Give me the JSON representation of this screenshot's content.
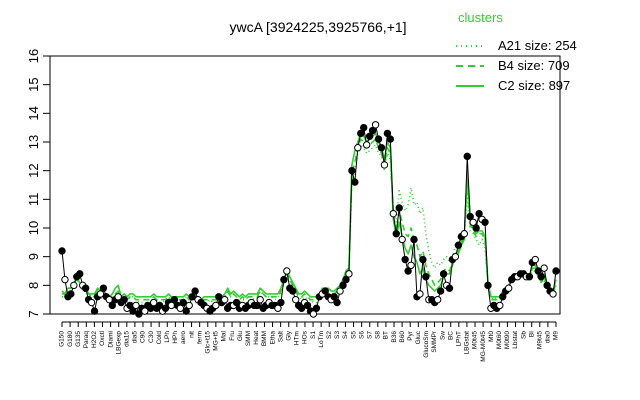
{
  "chart_data": {
    "type": "line",
    "title": "ywcA [3924225,3925766,+1]",
    "xlabel": "",
    "ylabel": "",
    "ylim": [
      7,
      16
    ],
    "yticks": [
      7,
      8,
      9,
      10,
      11,
      12,
      13,
      14,
      15,
      16
    ],
    "grid": false,
    "legend": {
      "title": "clusters",
      "placement": "top-right",
      "entries": [
        {
          "label": "A21 size: 254",
          "style": "dotted",
          "color": "#33cc33"
        },
        {
          "label": "B4 size: 709",
          "style": "dashed",
          "color": "#33cc33"
        },
        {
          "label": "C2 size: 897",
          "style": "solid",
          "color": "#33cc33"
        }
      ]
    },
    "x_tick_labels": [
      "G150",
      "G180",
      "G135",
      "Paraq",
      "H2O2",
      "Oxctl",
      "Diami",
      "LBGexp",
      "dia15",
      "dia5",
      "C90",
      "C30",
      "Cold",
      "LPh",
      "HPh",
      "aero",
      "nit",
      "ferm",
      "Glc+t15",
      "MG+t5",
      "Mal",
      "Fru",
      "Glu",
      "SMM",
      "Heat",
      "BMM",
      "Etha",
      "Salt",
      "Gly",
      "HTm",
      "HOs",
      "S1",
      "LoTm",
      "S2",
      "S3",
      "S4",
      "S5",
      "S6",
      "S7",
      "S8",
      "BT",
      "B36",
      "B60",
      "Pyr",
      "Gluc",
      "GlucoSm",
      "SMMPr",
      "Sw",
      "BC",
      "LPhT",
      "LBGstat",
      "M0t45",
      "MG-M0t45",
      "Mt0",
      "M0t60",
      "M0t90",
      "Lbstat",
      "Sb",
      "BI",
      "M9t45",
      "dia0",
      "M9"
    ],
    "series": [
      {
        "name": "ywcA",
        "color": "#000000",
        "values": [
          9.2,
          8.2,
          7.6,
          7.7,
          8.0,
          8.3,
          8.4,
          8.0,
          7.9,
          7.5,
          7.4,
          7.1,
          7.6,
          7.7,
          7.9,
          7.6,
          7.5,
          7.3,
          7.5,
          7.6,
          7.4,
          7.5,
          7.2,
          7.3,
          7.1,
          7.3,
          7.0,
          7.2,
          7.1,
          7.3,
          7.2,
          7.4,
          7.2,
          7.3,
          7.1,
          7.2,
          7.4,
          7.3,
          7.5,
          7.3,
          7.2,
          7.4,
          7.1,
          7.3,
          7.6,
          7.8,
          7.5,
          7.4,
          7.3,
          7.2,
          7.1,
          7.2,
          7.3,
          7.6,
          7.4,
          7.5,
          7.2,
          7.3,
          7.3,
          7.4,
          7.2,
          7.3,
          7.2,
          7.3,
          7.4,
          7.3,
          7.3,
          7.5,
          7.2,
          7.3,
          7.4,
          7.3,
          7.3,
          7.2,
          7.4,
          8.2,
          8.5,
          7.9,
          7.8,
          7.5,
          7.3,
          7.2,
          7.4,
          7.3,
          7.1,
          7.0,
          7.2,
          7.6,
          7.7,
          7.8,
          7.6,
          7.5,
          7.6,
          7.4,
          7.8,
          8.0,
          8.2,
          8.4,
          12.0,
          11.6,
          12.8,
          13.3,
          13.5,
          12.9,
          13.2,
          13.4,
          13.6,
          13.1,
          12.8,
          12.2,
          13.3,
          13.1,
          10.5,
          9.8,
          10.7,
          9.6,
          8.9,
          8.5,
          8.7,
          9.6,
          7.6,
          7.7,
          8.9,
          8.3,
          7.5,
          7.5,
          7.4,
          7.5,
          7.8,
          8.4,
          8.0,
          7.9,
          8.9,
          9.0,
          9.4,
          9.7,
          9.8,
          12.5,
          10.4,
          10.2,
          10.0,
          10.5,
          10.3,
          10.2,
          8.0,
          7.2,
          7.3,
          7.2,
          7.3,
          7.6,
          7.8,
          7.9,
          8.2,
          8.3,
          8.3,
          8.4,
          8.4,
          8.3,
          8.3,
          8.8,
          8.9,
          8.5,
          8.3,
          8.6,
          8.0,
          7.8,
          7.7,
          8.5
        ]
      },
      {
        "name": "A21 size: 254",
        "color": "#33cc33",
        "style": "dotted",
        "values": [
          7.6,
          7.6,
          7.8,
          7.8,
          8.0,
          8.2,
          8.1,
          7.8,
          7.8,
          7.6,
          7.6,
          7.6,
          7.8,
          7.6,
          7.5,
          7.6,
          7.5,
          7.5,
          7.6,
          7.6,
          7.4,
          7.5,
          7.4,
          7.6,
          7.6,
          7.5,
          7.4,
          7.4,
          7.4,
          7.4,
          7.4,
          7.6,
          7.5,
          7.4,
          7.4,
          7.5,
          7.6,
          7.4,
          7.3,
          7.4,
          7.4,
          7.5,
          7.6,
          7.5,
          7.6,
          7.4,
          7.4,
          7.3,
          7.4,
          7.4,
          7.5,
          7.4,
          7.4,
          7.5,
          7.4,
          7.6,
          7.8,
          7.6,
          7.7,
          7.6,
          7.4,
          7.5,
          7.5,
          7.6,
          7.6,
          7.5,
          7.5,
          7.8,
          7.7,
          7.6,
          7.6,
          7.6,
          7.5,
          7.6,
          7.7,
          8.0,
          8.3,
          8.2,
          7.9,
          7.7,
          7.6,
          7.5,
          7.6,
          7.5,
          7.5,
          7.4,
          7.4,
          7.6,
          7.8,
          7.8,
          7.7,
          7.7,
          7.6,
          7.7,
          7.9,
          8.1,
          8.4,
          8.4,
          11.6,
          12.0,
          12.6,
          12.9,
          12.8,
          12.6,
          12.7,
          12.8,
          12.9,
          12.6,
          12.5,
          12.0,
          12.6,
          12.4,
          10.6,
          10.2,
          11.3,
          10.9,
          10.6,
          10.8,
          11.4,
          10.8,
          10.9,
          10.5,
          10.7,
          9.8,
          9.2,
          8.8,
          8.6,
          8.8,
          8.7,
          8.9,
          9.0,
          8.8,
          9.0,
          9.4,
          9.3,
          9.6,
          9.8,
          11.1,
          9.9,
          9.8,
          9.6,
          9.4,
          9.6,
          9.3,
          8.1,
          7.6,
          7.5,
          7.6,
          7.6,
          7.7,
          7.9,
          8.0,
          8.1,
          8.2,
          8.2,
          8.3,
          8.3,
          8.2,
          8.2,
          8.5,
          8.5,
          8.3,
          8.1,
          8.2,
          7.9,
          7.8,
          7.7,
          8.0
        ]
      },
      {
        "name": "B4 size: 709",
        "color": "#33cc33",
        "style": "dashed",
        "values": [
          7.7,
          7.7,
          7.9,
          7.9,
          8.1,
          8.2,
          8.1,
          7.9,
          7.9,
          7.7,
          7.6,
          7.6,
          7.8,
          7.7,
          7.6,
          7.7,
          7.6,
          7.6,
          7.7,
          7.8,
          7.5,
          7.6,
          7.5,
          7.6,
          7.6,
          7.5,
          7.5,
          7.5,
          7.5,
          7.5,
          7.5,
          7.6,
          7.5,
          7.5,
          7.5,
          7.5,
          7.6,
          7.5,
          7.5,
          7.5,
          7.5,
          7.5,
          7.6,
          7.5,
          7.6,
          7.5,
          7.5,
          7.4,
          7.5,
          7.5,
          7.5,
          7.5,
          7.5,
          7.5,
          7.5,
          7.6,
          7.8,
          7.6,
          7.7,
          7.6,
          7.5,
          7.6,
          7.5,
          7.6,
          7.6,
          7.6,
          7.6,
          7.8,
          7.7,
          7.6,
          7.6,
          7.6,
          7.6,
          7.6,
          7.8,
          8.1,
          8.4,
          8.2,
          8.0,
          7.8,
          7.6,
          7.6,
          7.7,
          7.6,
          7.5,
          7.5,
          7.5,
          7.6,
          7.8,
          7.8,
          7.8,
          7.7,
          7.7,
          7.8,
          7.9,
          8.1,
          8.4,
          8.5,
          11.9,
          12.3,
          12.8,
          13.1,
          13.0,
          12.8,
          12.9,
          13.0,
          13.1,
          12.8,
          12.6,
          12.2,
          12.8,
          12.6,
          10.4,
          9.9,
          10.6,
          10.2,
          9.8,
          9.7,
          10.0,
          9.6,
          9.4,
          9.0,
          9.2,
          8.7,
          8.4,
          8.2,
          8.0,
          8.1,
          8.2,
          8.5,
          8.6,
          8.5,
          8.8,
          9.1,
          9.2,
          9.5,
          9.7,
          11.7,
          10.1,
          9.9,
          9.7,
          9.8,
          9.8,
          9.6,
          8.0,
          7.5,
          7.5,
          7.5,
          7.5,
          7.7,
          7.8,
          7.9,
          8.1,
          8.2,
          8.2,
          8.3,
          8.3,
          8.2,
          8.2,
          8.6,
          8.6,
          8.3,
          8.1,
          8.3,
          7.9,
          7.8,
          7.7,
          8.1
        ]
      },
      {
        "name": "C2 size: 897",
        "color": "#33cc33",
        "style": "solid",
        "values": [
          7.8,
          7.7,
          7.9,
          7.9,
          8.1,
          8.2,
          8.1,
          7.9,
          7.9,
          7.7,
          7.7,
          7.7,
          7.9,
          7.8,
          7.7,
          7.7,
          7.6,
          7.7,
          7.9,
          8.0,
          7.6,
          7.7,
          7.6,
          7.7,
          7.7,
          7.6,
          7.6,
          7.6,
          7.6,
          7.6,
          7.6,
          7.7,
          7.6,
          7.6,
          7.6,
          7.6,
          7.7,
          7.6,
          7.6,
          7.6,
          7.6,
          7.6,
          7.7,
          7.6,
          7.7,
          7.6,
          7.6,
          7.5,
          7.6,
          7.6,
          7.6,
          7.6,
          7.6,
          7.6,
          7.6,
          7.7,
          7.9,
          7.7,
          7.8,
          7.7,
          7.6,
          7.7,
          7.6,
          7.7,
          7.7,
          7.7,
          7.7,
          7.9,
          7.8,
          7.7,
          7.7,
          7.7,
          7.7,
          7.7,
          7.9,
          8.2,
          8.5,
          8.3,
          8.1,
          7.9,
          7.7,
          7.7,
          7.8,
          7.7,
          7.6,
          7.6,
          7.6,
          7.7,
          7.9,
          7.9,
          7.9,
          7.8,
          7.8,
          7.9,
          8.0,
          8.2,
          8.5,
          8.6,
          12.2,
          12.7,
          13.0,
          13.3,
          13.2,
          13.0,
          13.1,
          13.2,
          13.3,
          13.0,
          12.8,
          12.4,
          13.0,
          12.8,
          10.3,
          9.7,
          10.2,
          9.7,
          9.3,
          9.1,
          9.4,
          9.0,
          8.8,
          8.4,
          8.6,
          8.2,
          8.0,
          7.9,
          7.8,
          7.9,
          8.0,
          8.3,
          8.4,
          8.4,
          8.7,
          9.0,
          9.1,
          9.4,
          9.6,
          12.0,
          10.2,
          10.0,
          9.8,
          9.9,
          9.9,
          9.7,
          8.1,
          7.6,
          7.6,
          7.6,
          7.6,
          7.8,
          7.9,
          8.0,
          8.2,
          8.3,
          8.3,
          8.4,
          8.4,
          8.3,
          8.3,
          8.7,
          8.7,
          8.4,
          8.2,
          8.4,
          8.0,
          7.9,
          7.8,
          8.2
        ]
      }
    ]
  }
}
